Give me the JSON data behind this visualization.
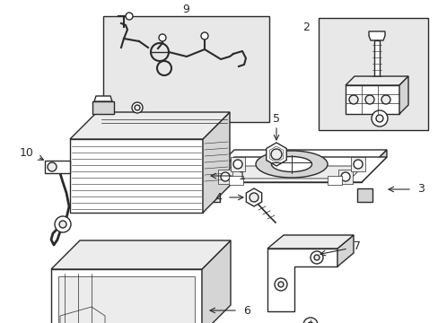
{
  "bg_color": "#ffffff",
  "line_color": "#2a2a2a",
  "fill_light": "#ececec",
  "fill_medium": "#d5d5d5",
  "fill_dark": "#b8b8b8",
  "fill_white": "#ffffff",
  "box9_fill": "#e8e8e8",
  "box2_fill": "#e8e8e8",
  "figsize": [
    4.89,
    3.6
  ],
  "dpi": 100
}
